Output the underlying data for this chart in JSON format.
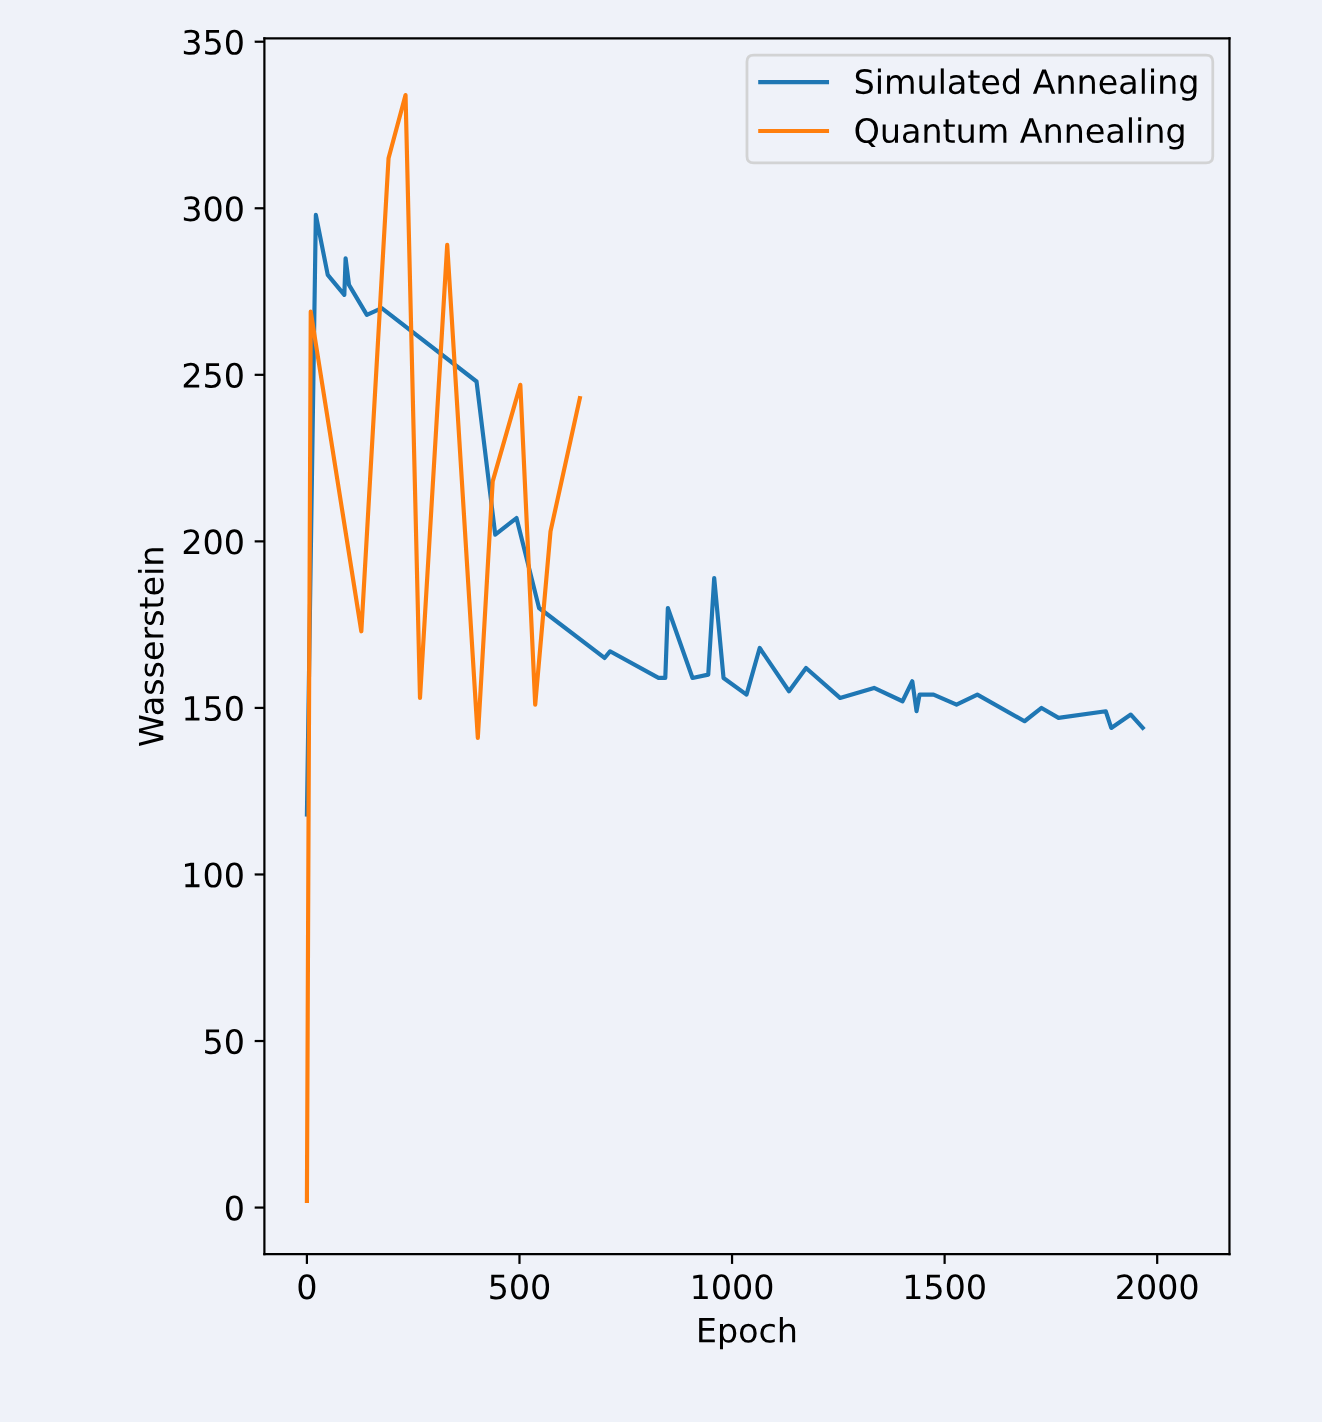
{
  "chart_data": {
    "type": "line",
    "xlabel": "Epoch",
    "ylabel": "Wasserstein",
    "xlim": [
      -100,
      2170
    ],
    "xticks": [
      0,
      500,
      1000,
      1500,
      2000
    ],
    "ylim": [
      -14,
      351
    ],
    "yticks": [
      0,
      50,
      100,
      150,
      200,
      250,
      300,
      350
    ],
    "grid": false,
    "legend": "top right",
    "series": [
      {
        "name": "Simulated Annealing",
        "color": "#1f77b4",
        "x": [
          0,
          21,
          49,
          88,
          91,
          99,
          141,
          176,
          399,
          443,
          493,
          546,
          700,
          713,
          827,
          843,
          849,
          907,
          944,
          958,
          980,
          1034,
          1065,
          1134,
          1174,
          1254,
          1334,
          1401,
          1424,
          1434,
          1441,
          1474,
          1528,
          1577,
          1688,
          1728,
          1768,
          1879,
          1892,
          1938,
          1966
        ],
        "values": [
          118,
          298,
          280,
          274,
          285,
          277,
          268,
          270,
          248,
          202,
          207,
          180,
          165,
          167,
          159,
          159,
          180,
          159,
          160,
          189,
          159,
          154,
          168,
          155,
          162,
          153,
          156,
          152,
          158,
          149,
          154,
          154,
          151,
          154,
          146,
          150,
          147,
          149,
          144,
          148,
          144
        ]
      },
      {
        "name": "Quantum Annealing",
        "color": "#ff7f0e",
        "x": [
          0,
          9,
          128,
          192,
          232,
          266,
          330,
          402,
          437,
          502,
          537,
          573,
          642
        ],
        "values": [
          2,
          269,
          173,
          315,
          334,
          153,
          289,
          141,
          218,
          247,
          151,
          203,
          243
        ]
      }
    ]
  }
}
